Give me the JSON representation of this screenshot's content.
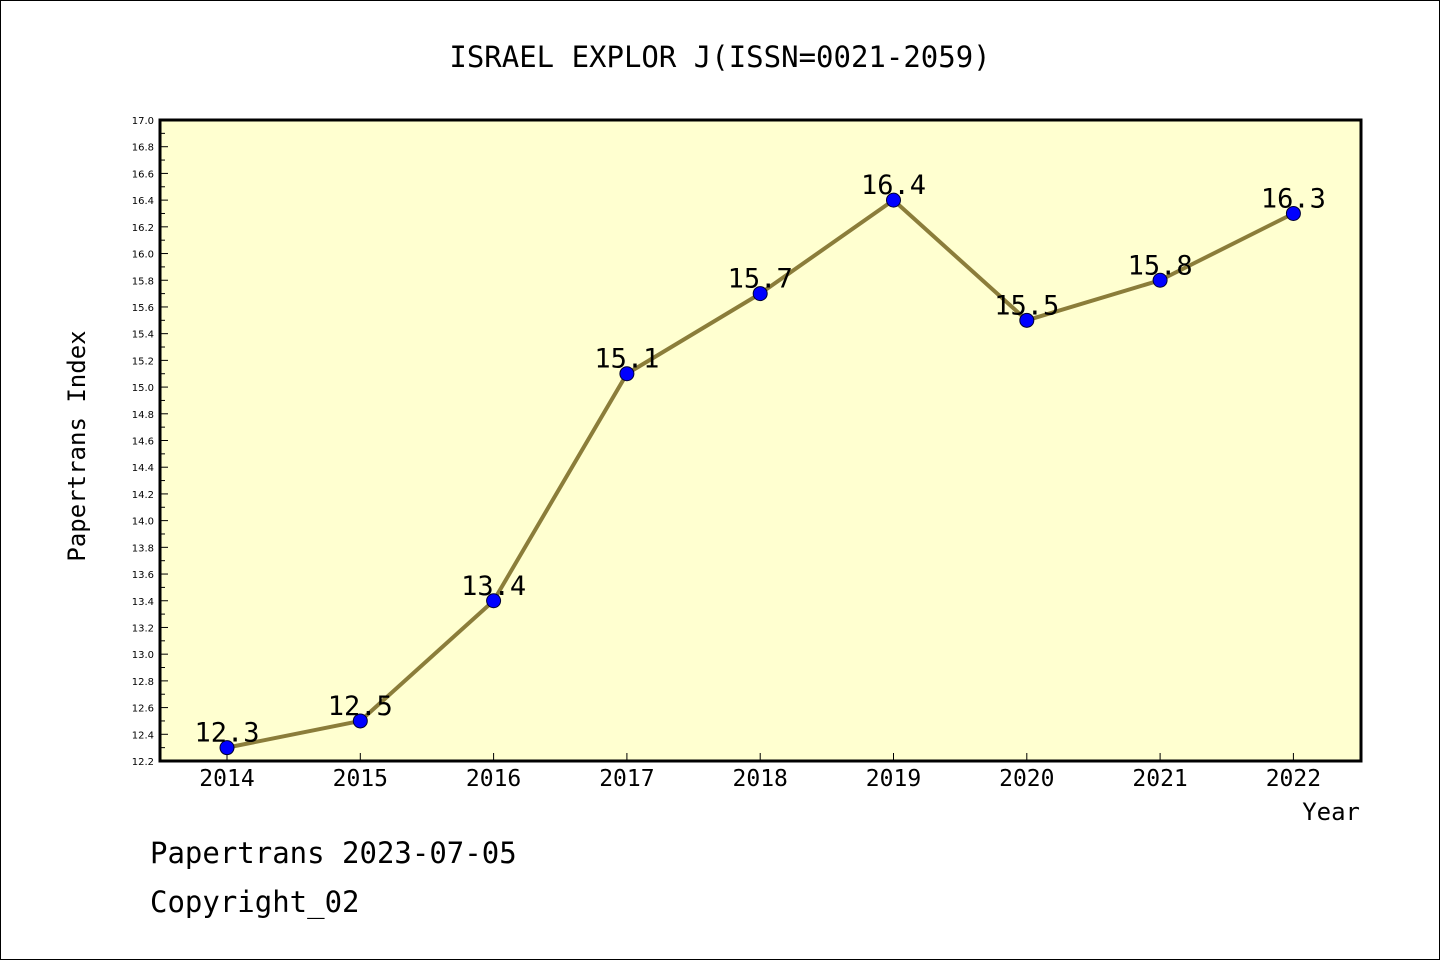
{
  "chart_data": {
    "type": "line",
    "title": "ISRAEL EXPLOR J(ISSN=0021-2059)",
    "xlabel": "Year",
    "ylabel": "Papertrans Index",
    "categories": [
      "2014",
      "2015",
      "2016",
      "2017",
      "2018",
      "2019",
      "2020",
      "2021",
      "2022"
    ],
    "series": [
      {
        "values": [
          12.3,
          12.5,
          13.4,
          15.1,
          15.7,
          16.4,
          15.5,
          15.8,
          16.3
        ]
      }
    ],
    "data_labels": [
      "12.3",
      "12.5",
      "13.4",
      "15.1",
      "15.7",
      "16.4",
      "15.5",
      "15.8",
      "16.3"
    ],
    "ylim": [
      12.2,
      17.0
    ],
    "y_ticks": [
      "12.2",
      "12.4",
      "12.6",
      "12.8",
      "13.0",
      "13.2",
      "13.4",
      "13.6",
      "13.8",
      "14.0",
      "14.2",
      "14.4",
      "14.6",
      "14.8",
      "15.0",
      "15.2",
      "15.4",
      "15.6",
      "15.8",
      "16.0",
      "16.2",
      "16.4",
      "16.6",
      "16.8",
      "17.0"
    ],
    "grid": false,
    "colors": {
      "plot_background": "#ffffd0",
      "line": "#8b7d3a",
      "marker": "#0000ff"
    }
  },
  "footer": {
    "date_line": "Papertrans 2023-07-05",
    "copyright_line": "Copyright_02"
  }
}
